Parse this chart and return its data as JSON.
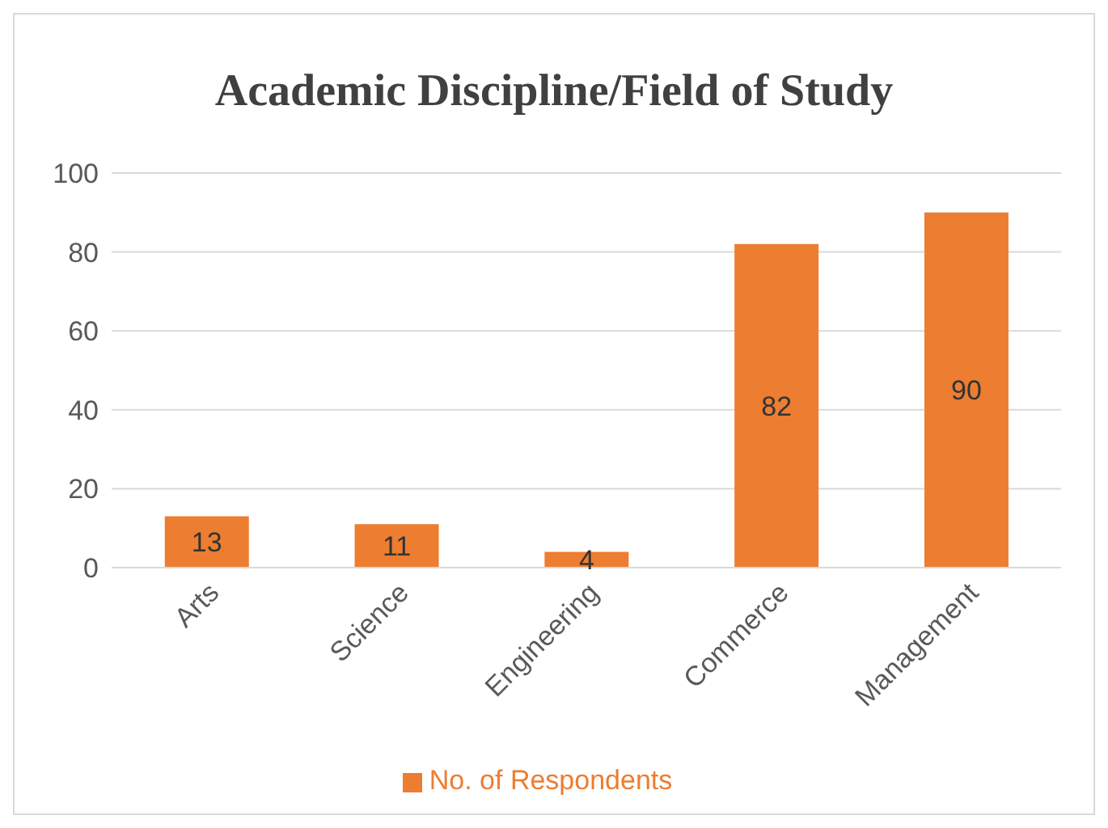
{
  "chart_data": {
    "type": "bar",
    "title": "Academic Discipline/Field of Study",
    "categories": [
      "Arts",
      "Science",
      "Engineering",
      "Commerce",
      "Management"
    ],
    "series": [
      {
        "name": "No. of Respondents",
        "color": "#ed7d31",
        "values": [
          13,
          11,
          4,
          82,
          90
        ]
      }
    ],
    "ylim": [
      0,
      100
    ],
    "yticks": [
      0,
      20,
      40,
      60,
      80,
      100
    ],
    "grid": "y",
    "legend": "bottom",
    "data_labels": true
  }
}
